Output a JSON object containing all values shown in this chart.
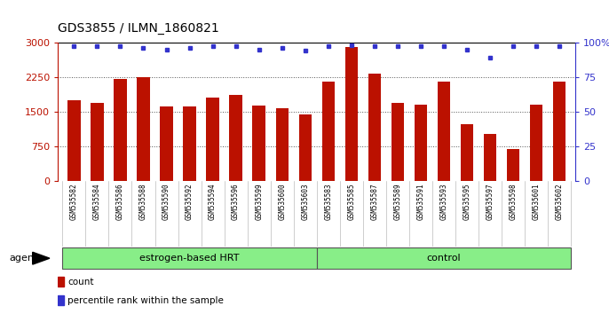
{
  "title": "GDS3855 / ILMN_1860821",
  "samples": [
    "GSM535582",
    "GSM535584",
    "GSM535586",
    "GSM535588",
    "GSM535590",
    "GSM535592",
    "GSM535594",
    "GSM535596",
    "GSM535599",
    "GSM535600",
    "GSM535603",
    "GSM535583",
    "GSM535585",
    "GSM535587",
    "GSM535589",
    "GSM535591",
    "GSM535593",
    "GSM535595",
    "GSM535597",
    "GSM535598",
    "GSM535601",
    "GSM535602"
  ],
  "counts": [
    1750,
    1680,
    2200,
    2250,
    1600,
    1600,
    1800,
    1850,
    1620,
    1570,
    1430,
    2150,
    2900,
    2330,
    1680,
    1650,
    2150,
    1230,
    1020,
    690,
    1650,
    2150
  ],
  "percentiles": [
    97,
    97,
    97,
    96,
    95,
    96,
    97,
    97,
    95,
    96,
    94,
    97,
    98,
    97,
    97,
    97,
    97,
    95,
    89,
    97,
    97,
    97
  ],
  "n_hrt": 11,
  "n_ctrl": 11,
  "group_labels": [
    "estrogen-based HRT",
    "control"
  ],
  "bar_color": "#BB1100",
  "dot_color": "#3333CC",
  "ylim_left": [
    0,
    3000
  ],
  "ylim_right": [
    0,
    100
  ],
  "yticks_left": [
    0,
    750,
    1500,
    2250,
    3000
  ],
  "yticks_right": [
    0,
    25,
    50,
    75,
    100
  ],
  "agent_label": "agent",
  "legend_count": "count",
  "legend_pct": "percentile rank within the sample",
  "plot_bg": "#ffffff",
  "xlabel_bg": "#d8d8d8",
  "group_bg": "#88EE88",
  "title_fontsize": 10,
  "axis_fontsize": 8,
  "bar_width": 0.55
}
